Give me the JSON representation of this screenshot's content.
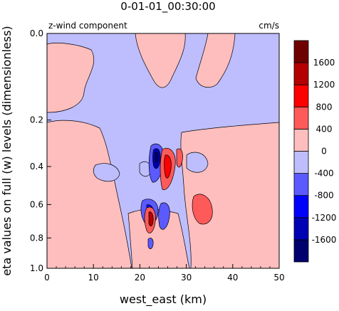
{
  "chart_data": {
    "type": "heatmap",
    "title": "0-01-01_00:30:00",
    "left_label": "z-wind component",
    "right_label": "cm/s",
    "xlabel": "west_east (km)",
    "ylabel": "eta values on full (w) levels (dimensionless)",
    "xlim": [
      0,
      50
    ],
    "x_ticks": [
      0,
      10,
      20,
      30,
      40,
      50
    ],
    "y_ticks": [
      0.0,
      0.2,
      0.4,
      0.6,
      0.8,
      1.0
    ],
    "y_tick_labels": [
      "0.0",
      "0.2",
      "0.4",
      "0.6",
      "0.8",
      "1.0"
    ],
    "y_axis": "eta, reversed (0.0 at top, 1.0 at bottom)",
    "colorbar": {
      "levels": [
        -2000,
        -1600,
        -1200,
        -800,
        -400,
        0,
        400,
        800,
        1200,
        1600,
        2000
      ],
      "labels": [
        "-1600",
        "-1200",
        "-800",
        "-400",
        "0",
        "400",
        "800",
        "1200",
        "1600"
      ],
      "colors": [
        "#00006e",
        "#0000b4",
        "#0000ff",
        "#5a5aff",
        "#bebeff",
        "#ffbebe",
        "#ff5a5a",
        "#ff0000",
        "#b40000",
        "#6e0000"
      ]
    },
    "background_color": "#bebeff",
    "features": [
      {
        "kind": "band",
        "sign": "positive",
        "range_x_km": [
          0,
          50
        ],
        "range_eta": [
          0.75,
          1.0
        ]
      },
      {
        "kind": "column",
        "sign": "positive",
        "range_x_km": [
          8,
          21
        ],
        "range_eta": [
          0.2,
          0.75
        ]
      },
      {
        "kind": "column",
        "sign": "positive",
        "range_x_km": [
          26,
          40
        ],
        "range_eta": [
          0.25,
          0.75
        ]
      },
      {
        "kind": "updraft",
        "sign": "positive",
        "center_x_km": 23.5,
        "center_eta": 0.38,
        "max_value": 1200
      },
      {
        "kind": "updraft",
        "sign": "positive",
        "center_x_km": 22.5,
        "center_eta": 0.65,
        "max_value": 1200
      },
      {
        "kind": "downdraft",
        "sign": "negative",
        "center_x_km": 23,
        "center_eta": 0.32,
        "min_value": -1600
      },
      {
        "kind": "downdraft",
        "sign": "negative",
        "center_x_km": 21.5,
        "center_eta": 0.58,
        "min_value": -1200
      },
      {
        "kind": "updraft",
        "sign": "positive",
        "center_x_km": 33.5,
        "center_eta": 0.52,
        "max_value": 800
      }
    ]
  }
}
